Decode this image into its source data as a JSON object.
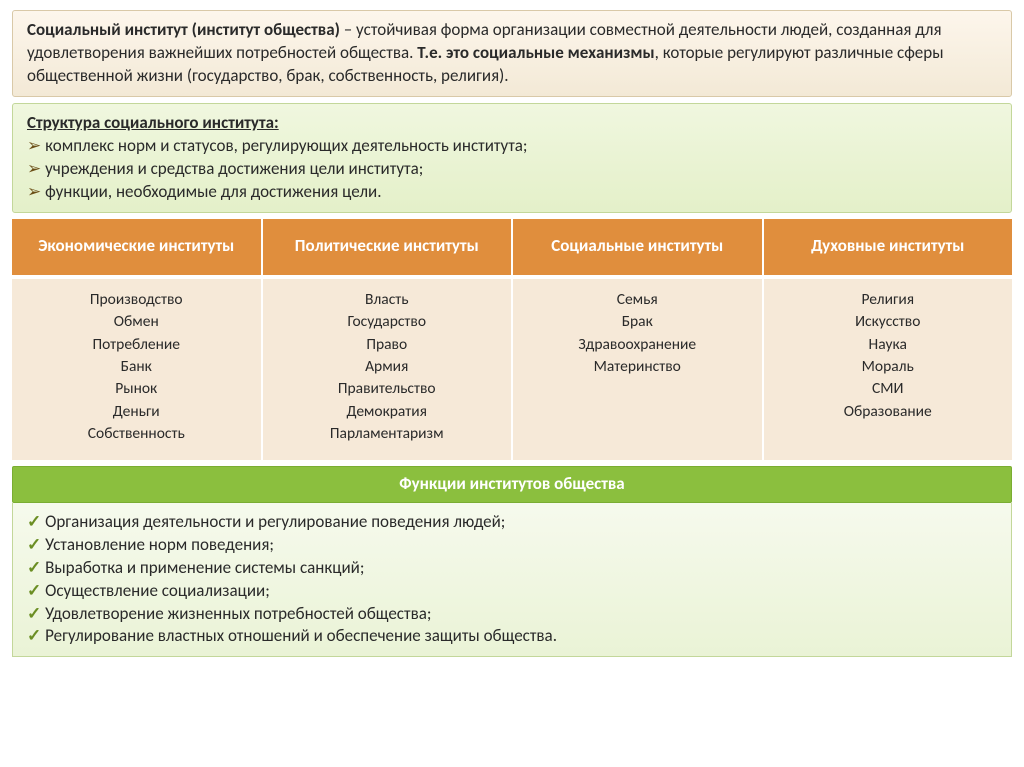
{
  "definition": {
    "title_bold": "Социальный институт (институт общества)",
    "body1": " – устойчивая форма организации совместной деятельности людей, созданная для удовлетворения важнейших потребностей общества. ",
    "body2_bold": "Т.е. это социальные механизмы",
    "body3": ", которые регулируют различные сферы общественной жизни (государство, брак, собственность, религия)."
  },
  "structure": {
    "heading": "Структура социального института:",
    "items": [
      "комплекс норм и статусов, регулирующих деятельность института;",
      "учреждения  и средства достижения цели института;",
      "функции, необходимые для достижения цели."
    ]
  },
  "table": {
    "headers": [
      "Экономические институты",
      "Политические институты",
      "Социальные институты",
      "Духовные институты"
    ],
    "columns": [
      [
        "Производство",
        "Обмен",
        "Потребление",
        "Банк",
        "Рынок",
        "Деньги",
        "Собственность"
      ],
      [
        "Власть",
        "Государство",
        "Право",
        "Армия",
        "Правительство",
        "Демократия",
        "Парламентаризм"
      ],
      [
        "Семья",
        "Брак",
        "Здравоохранение",
        "Материнство"
      ],
      [
        "Религия",
        "Искусство",
        "Наука",
        "Мораль",
        "СМИ",
        "Образование"
      ]
    ],
    "header_bg": "#e08e3d",
    "header_fg": "#ffffff",
    "cell_bg": "#f6e9d8"
  },
  "functions": {
    "heading": "Функции институтов общества",
    "items": [
      "Организация деятельности и регулирование поведения людей;",
      "Установление норм поведения;",
      "Выработка и применение системы санкций;",
      "Осуществление социализации;",
      "Удовлетворение жизненных потребностей общества;",
      "Регулирование властных отношений и обеспечение защиты общества."
    ],
    "head_bg": "#8bbf3e"
  }
}
